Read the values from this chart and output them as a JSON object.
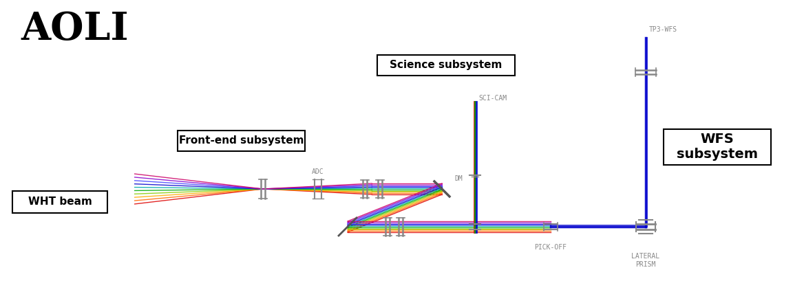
{
  "title": "AOLI",
  "bg_color": "#ffffff",
  "labels": {
    "aoli": "AOLI",
    "wht_beam": "WHT beam",
    "front_end": "Front-end subsystem",
    "science": "Science subsystem",
    "wfs": "WFS\nsubsystem",
    "adc": "ADC",
    "dm": "DM",
    "sci_cam": "SCI-CAM",
    "pick_off": "PICK-OFF",
    "lateral_prism": "LATERAL\nPRISM",
    "tp3_wfs": "TP3-WFS"
  },
  "colors": {
    "red": "#dd0000",
    "green": "#00aa00",
    "blue": "#0000cc",
    "gray": "#888888",
    "dark_gray": "#555555",
    "black": "#000000",
    "optic_gray": "#aaaaaa"
  }
}
